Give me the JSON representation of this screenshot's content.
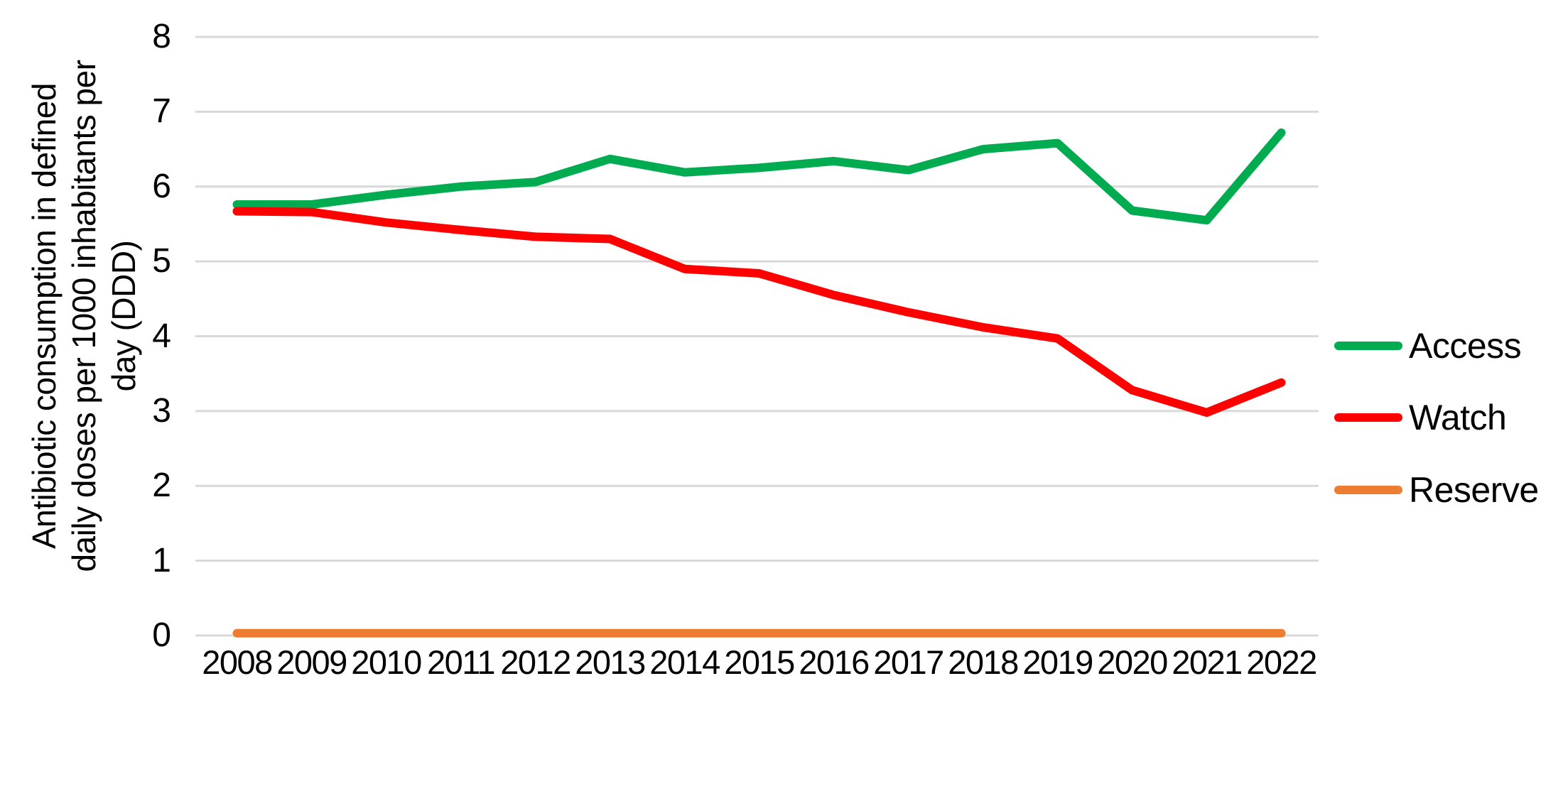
{
  "chart_data": {
    "type": "line",
    "title": "",
    "xlabel": "",
    "ylabel": "Antibiotic consumption in defined daily doses per 1000 inhabitants per day (DDD)",
    "ylabel_lines": [
      "Antibiotic consumption in defined",
      "daily doses per 1000 inhabitants per",
      "day (DDD)"
    ],
    "x_categories": [
      "2008",
      "2009",
      "2010",
      "2011",
      "2012",
      "2013",
      "2014",
      "2015",
      "2016",
      "2017",
      "2018",
      "2019",
      "2020",
      "2021",
      "2022"
    ],
    "ylim": [
      0,
      8
    ],
    "yticks": [
      "0",
      "1",
      "2",
      "3",
      "4",
      "5",
      "6",
      "7",
      "8"
    ],
    "grid": "horizontal",
    "legend_position": "right",
    "gridline_color": "#D9D9D9",
    "text_color": "#000000",
    "background_color": "#FFFFFF",
    "series": [
      {
        "name": "Access",
        "color": "#00AC4F",
        "values": [
          5.76,
          5.76,
          5.89,
          6.0,
          6.06,
          6.37,
          6.19,
          6.25,
          6.34,
          6.22,
          6.5,
          6.58,
          5.68,
          5.55,
          6.72
        ]
      },
      {
        "name": "Watch",
        "color": "#FF0000",
        "values": [
          5.67,
          5.66,
          5.52,
          5.42,
          5.33,
          5.3,
          4.9,
          4.84,
          4.55,
          4.32,
          4.12,
          3.97,
          3.28,
          2.98,
          3.38
        ]
      },
      {
        "name": "Reserve",
        "color": "#ED7D31",
        "values": [
          0.03,
          0.03,
          0.03,
          0.03,
          0.03,
          0.03,
          0.03,
          0.03,
          0.03,
          0.03,
          0.03,
          0.03,
          0.03,
          0.03,
          0.03
        ]
      }
    ]
  }
}
